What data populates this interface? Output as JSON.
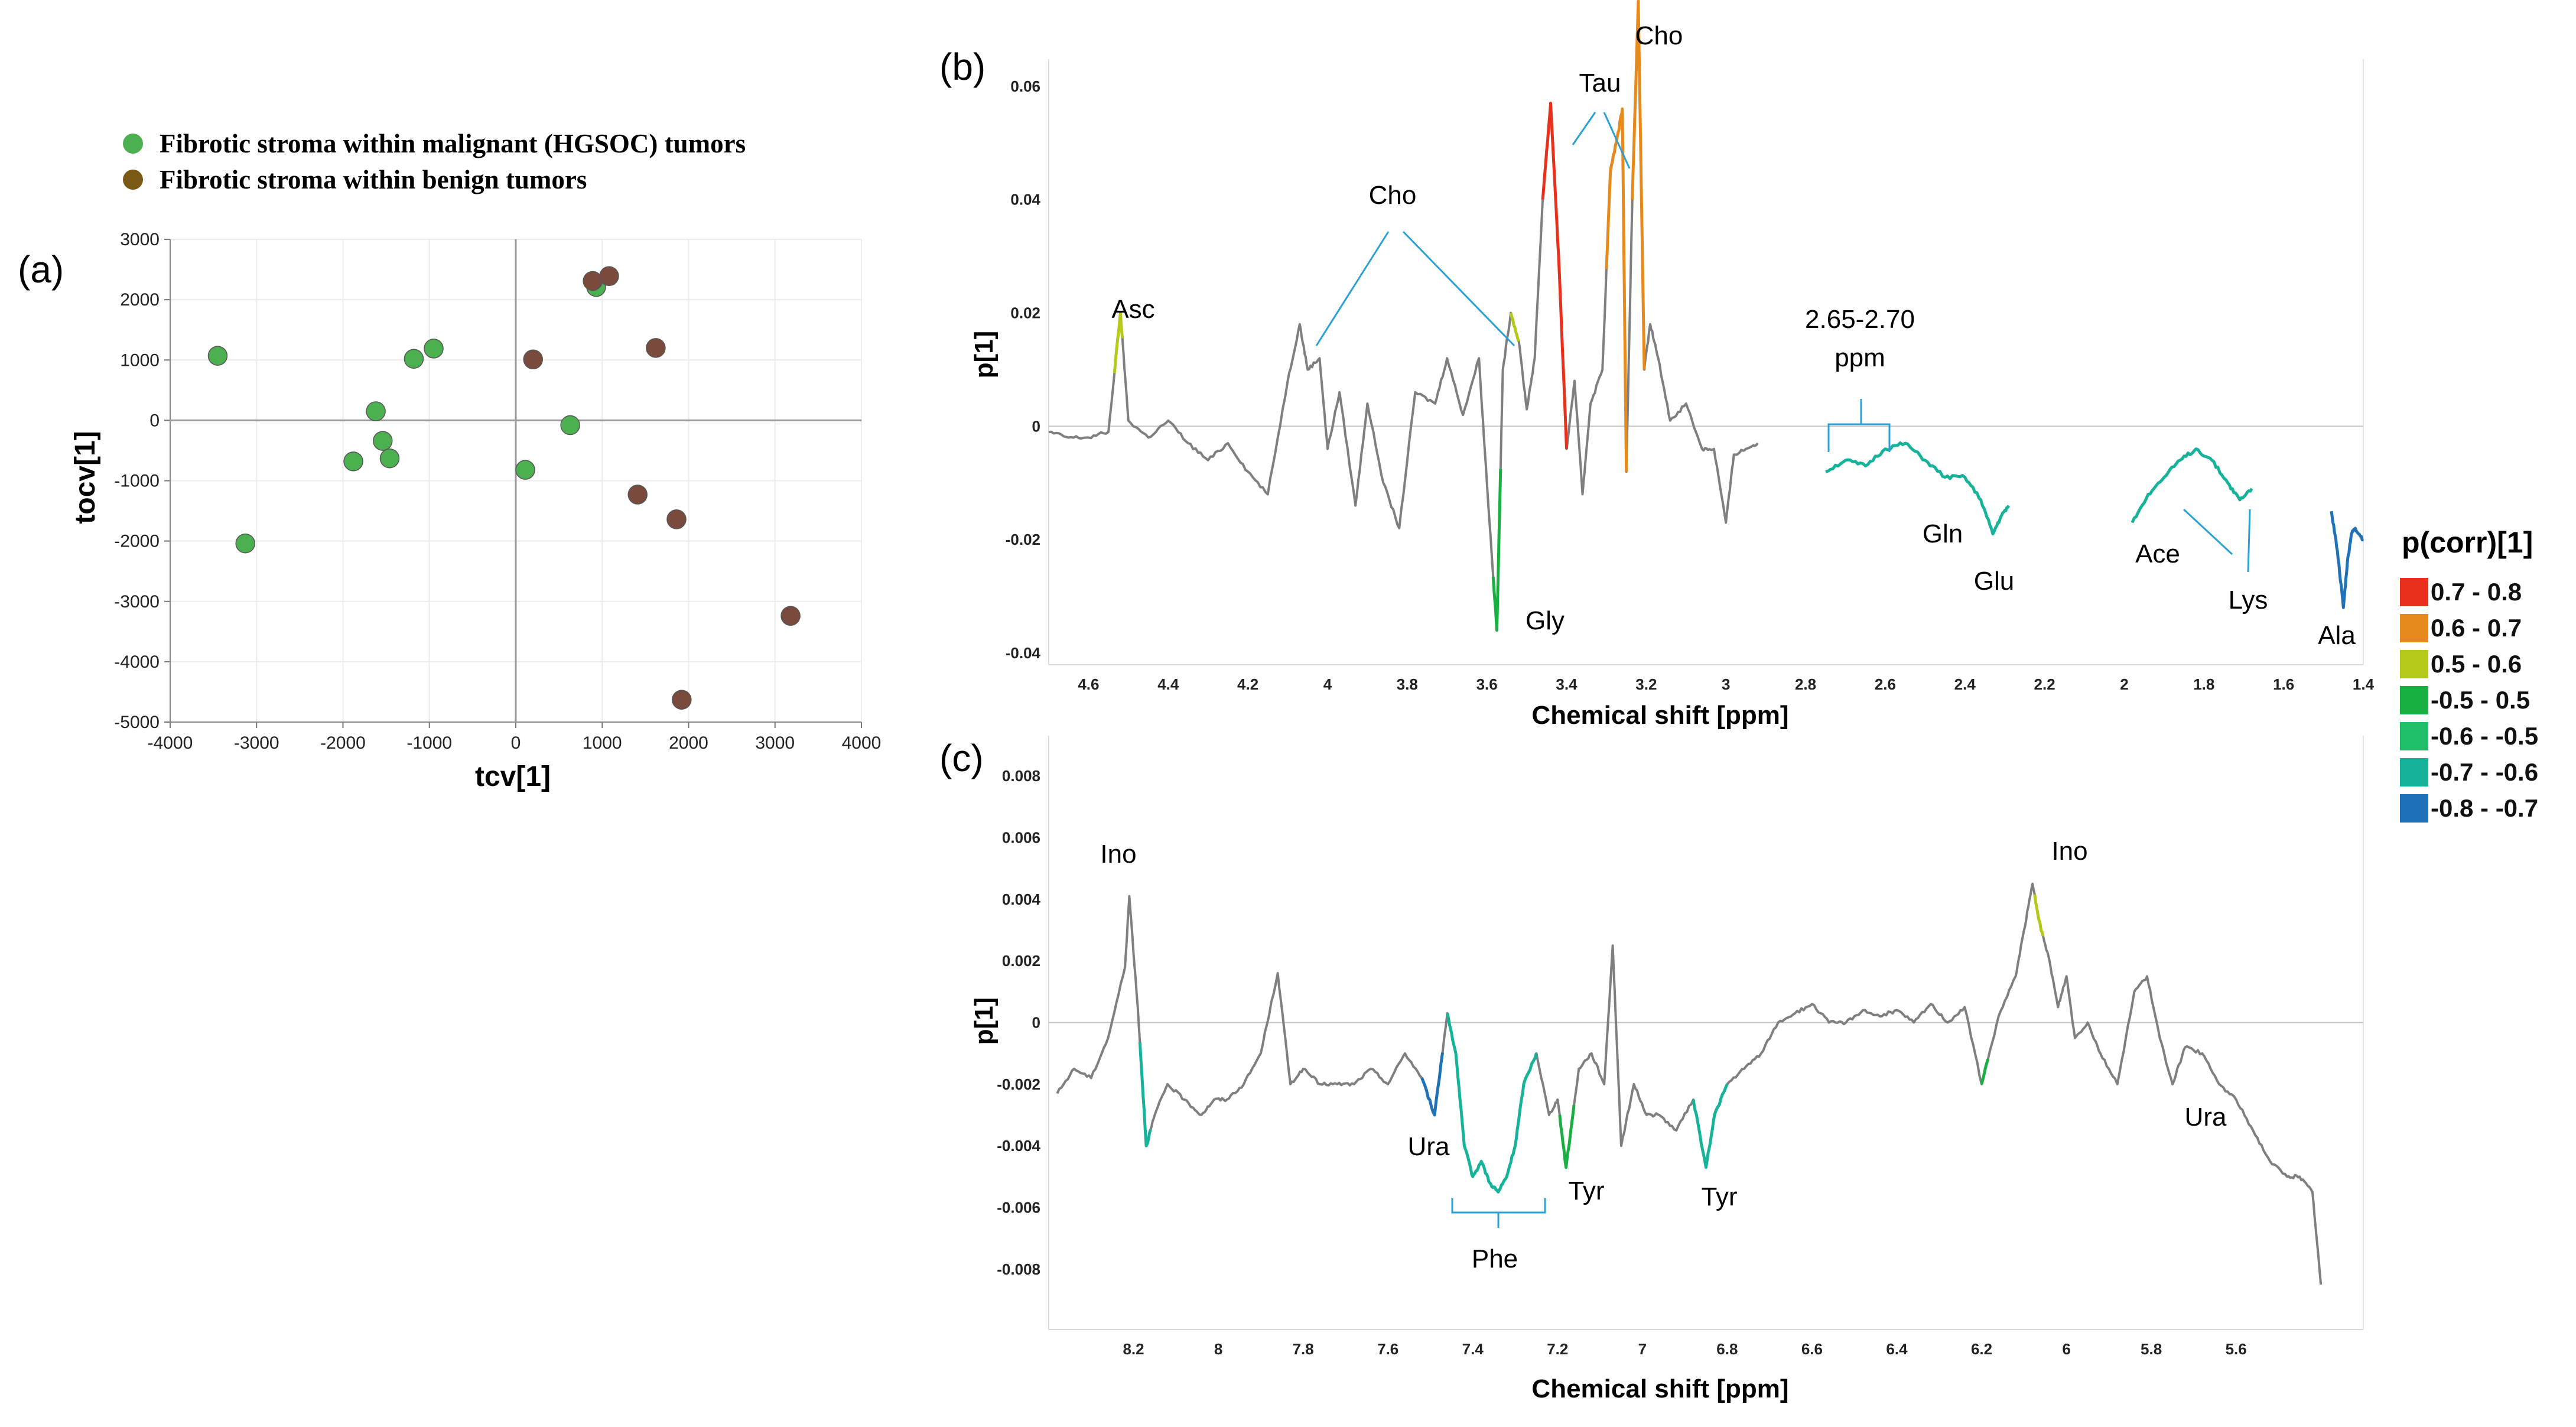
{
  "chart_data": [
    {
      "panel": "(a)",
      "type": "scatter",
      "xlabel": "tcv[1]",
      "ylabel": "tocv[1]",
      "xlim": [
        -4000,
        4000
      ],
      "ylim": [
        -5000,
        3000
      ],
      "xticks": [
        -4000,
        -3000,
        -2000,
        -1000,
        0,
        1000,
        2000,
        3000,
        4000
      ],
      "yticks": [
        3000,
        2000,
        1000,
        0,
        -1000,
        -2000,
        -3000,
        -4000,
        -5000
      ],
      "grid": true,
      "legend_position": "top",
      "series": [
        {
          "name": "Fibrotic stroma within malignant (HGSOC) tumors",
          "color": "#4caf50",
          "points": [
            [
              -3450,
              1070
            ],
            [
              -3130,
              -2040
            ],
            [
              -1880,
              -680
            ],
            [
              -1620,
              150
            ],
            [
              -1540,
              -340
            ],
            [
              -1460,
              -630
            ],
            [
              -1180,
              1020
            ],
            [
              -950,
              1190
            ],
            [
              110,
              -820
            ],
            [
              630,
              -80
            ],
            [
              930,
              2210
            ]
          ]
        },
        {
          "name": "Fibrotic stroma within benign tumors",
          "color": "#7a4a3c",
          "points": [
            [
              200,
              1010
            ],
            [
              890,
              2310
            ],
            [
              1080,
              2390
            ],
            [
              1410,
              -1230
            ],
            [
              1620,
              1200
            ],
            [
              1860,
              -1640
            ],
            [
              1920,
              -4630
            ],
            [
              3180,
              -3240
            ]
          ]
        }
      ]
    },
    {
      "panel": "(b)",
      "type": "line",
      "xlabel": "Chemical shift [ppm]",
      "ylabel": "p[1]",
      "xlim": [
        4.7,
        1.4
      ],
      "ylim": [
        -0.04,
        0.07
      ],
      "xticks": [
        "4.6",
        "4.4",
        "4.2",
        "4",
        "3.8",
        "3.6",
        "3.4",
        "3.2",
        "3",
        "2.8",
        "2.6",
        "2.4",
        "2.2",
        "2",
        "1.8",
        "1.6",
        "1.4"
      ],
      "yticks": [
        "0.06",
        "0.04",
        "0.02",
        "0",
        "-0.02",
        "-0.04"
      ],
      "segments": [
        {
          "x": [
            4.7,
            4.65,
            4.6,
            4.55,
            4.52,
            4.5,
            4.45,
            4.4,
            4.35,
            4.3,
            4.25,
            4.2,
            4.15,
            4.1,
            4.07,
            4.05,
            4.02,
            4.0,
            3.97,
            3.93,
            3.9,
            3.86,
            3.82,
            3.78,
            3.73,
            3.7,
            3.66,
            3.62,
            3.6,
            3.575,
            3.56,
            3.54,
            3.52,
            3.5,
            3.48,
            3.46,
            3.44,
            3.42,
            3.4,
            3.38,
            3.36,
            3.34,
            3.31,
            3.29,
            3.27,
            3.26,
            3.25,
            3.235,
            3.22,
            3.205,
            3.19,
            3.17,
            3.14,
            3.1,
            3.06,
            3.03,
            3.0,
            2.98,
            2.95,
            2.92
          ],
          "y": [
            -0.001,
            -0.002,
            -0.002,
            -0.001,
            0.02,
            0.001,
            -0.002,
            0.001,
            -0.003,
            -0.006,
            -0.003,
            -0.008,
            -0.012,
            0.008,
            0.018,
            0.01,
            0.012,
            -0.004,
            0.006,
            -0.014,
            0.004,
            -0.01,
            -0.018,
            0.006,
            0.004,
            0.012,
            0.002,
            0.012,
            -0.01,
            -0.036,
            0.01,
            0.02,
            0.015,
            0.003,
            0.012,
            0.04,
            0.057,
            0.03,
            -0.004,
            0.008,
            -0.012,
            0.004,
            0.01,
            0.045,
            0.052,
            0.056,
            -0.008,
            0.04,
            0.075,
            0.01,
            0.018,
            0.012,
            0.001,
            0.004,
            -0.004,
            -0.004,
            -0.017,
            -0.005,
            -0.004,
            -0.003
          ]
        },
        {
          "x": [
            2.75,
            2.7,
            2.65,
            2.6,
            2.55,
            2.5,
            2.45,
            2.4,
            2.36,
            2.33,
            2.31,
            2.29
          ],
          "y": [
            -0.008,
            -0.006,
            -0.007,
            -0.004,
            -0.003,
            -0.006,
            -0.009,
            -0.009,
            -0.013,
            -0.019,
            -0.016,
            -0.014
          ]
        },
        {
          "x": [
            1.98,
            1.94,
            1.9,
            1.86,
            1.82,
            1.78,
            1.74,
            1.71,
            1.68
          ],
          "y": [
            -0.017,
            -0.012,
            -0.009,
            -0.006,
            -0.004,
            -0.006,
            -0.01,
            -0.013,
            -0.011
          ]
        },
        {
          "x": [
            1.48,
            1.465,
            1.45,
            1.44,
            1.43,
            1.42,
            1.4
          ],
          "y": [
            -0.015,
            -0.022,
            -0.032,
            -0.024,
            -0.019,
            -0.018,
            -0.02
          ]
        }
      ],
      "colored_regions": [
        {
          "x": [
            4.535,
            4.515
          ],
          "color": "#b5c91a"
        },
        {
          "x": [
            3.46,
            3.4
          ],
          "color": "#e8301c"
        },
        {
          "x": [
            3.3,
            3.25
          ],
          "color": "#e68a1e"
        },
        {
          "x": [
            3.235,
            3.205
          ],
          "color": "#e68a1e"
        },
        {
          "x": [
            3.585,
            3.565
          ],
          "color": "#18b040"
        },
        {
          "x": [
            3.54,
            3.52
          ],
          "color": "#b5c91a"
        },
        {
          "x": [
            2.75,
            2.29
          ],
          "color": "#16b39a"
        },
        {
          "x": [
            1.98,
            1.68
          ],
          "color": "#16b39a"
        },
        {
          "x": [
            1.48,
            1.4
          ],
          "color": "#1f71b8"
        }
      ],
      "annotations": [
        "Asc",
        "Cho",
        "Tau",
        "Cho",
        "Gly",
        "Gln",
        "Glu",
        "Ace",
        "Lys",
        "Ala"
      ],
      "bracket_label": "2.65-2.70",
      "bracket_unit": "ppm"
    },
    {
      "panel": "(c)",
      "type": "line",
      "xlabel": "Chemical shift [ppm]",
      "ylabel": "p[1]",
      "xlim": [
        8.4,
        5.3
      ],
      "ylim": [
        -0.009,
        0.009
      ],
      "xticks": [
        "8.2",
        "8",
        "7.8",
        "7.6",
        "7.4",
        "7.2",
        "7",
        "6.8",
        "6.6",
        "6.4",
        "6.2",
        "6",
        "5.8",
        "5.6"
      ],
      "yticks": [
        "0.008",
        "0.006",
        "0.004",
        "0.002",
        "0",
        "-0.002",
        "-0.004",
        "-0.006",
        "-0.008"
      ],
      "segments": [
        {
          "x": [
            8.38,
            8.34,
            8.3,
            8.26,
            8.22,
            8.21,
            8.19,
            8.17,
            8.15,
            8.12,
            8.08,
            8.04,
            8.01,
            7.98,
            7.94,
            7.9,
            7.86,
            7.83,
            7.8,
            7.76,
            7.72,
            7.68,
            7.64,
            7.6,
            7.56,
            7.52,
            7.49,
            7.46,
            7.44,
            7.42,
            7.4,
            7.38,
            7.36,
            7.34,
            7.32,
            7.3,
            7.28,
            7.25,
            7.22,
            7.2,
            7.18,
            7.15,
            7.12,
            7.09,
            7.07,
            7.05,
            7.02,
            6.99,
            6.96,
            6.92,
            6.88,
            6.85,
            6.83,
            6.8,
            6.76,
            6.72,
            6.68,
            6.64,
            6.6,
            6.56,
            6.52,
            6.48,
            6.44,
            6.4,
            6.36,
            6.32,
            6.28,
            6.24,
            6.2,
            6.16,
            6.12,
            6.1,
            6.08,
            6.06,
            6.04,
            6.02,
            6.0,
            5.98,
            5.95,
            5.92,
            5.88,
            5.84,
            5.81,
            5.78,
            5.75,
            5.72,
            5.68,
            5.64,
            5.6,
            5.56,
            5.52,
            5.48,
            5.45,
            5.42,
            5.4
          ],
          "y": [
            -0.0023,
            -0.0015,
            -0.0018,
            -0.0005,
            0.0018,
            0.0041,
            0.0005,
            -0.004,
            -0.003,
            -0.002,
            -0.0025,
            -0.003,
            -0.0025,
            -0.0025,
            -0.002,
            -0.001,
            0.0016,
            -0.002,
            -0.0015,
            -0.002,
            -0.002,
            -0.002,
            -0.0015,
            -0.002,
            -0.001,
            -0.0018,
            -0.003,
            0.0003,
            -0.001,
            -0.004,
            -0.005,
            -0.0045,
            -0.0052,
            -0.0055,
            -0.005,
            -0.004,
            -0.002,
            -0.001,
            -0.003,
            -0.0025,
            -0.0047,
            -0.0015,
            -0.001,
            -0.002,
            0.0025,
            -0.004,
            -0.002,
            -0.003,
            -0.003,
            -0.0035,
            -0.0025,
            -0.0047,
            -0.003,
            -0.002,
            -0.0015,
            -0.001,
            0.0,
            0.0003,
            0.0006,
            0.0,
            0.0,
            0.0004,
            0.0002,
            0.0004,
            0.0,
            0.0006,
            0.0,
            0.0005,
            -0.002,
            0.0002,
            0.0015,
            0.003,
            0.0045,
            0.003,
            0.002,
            0.0005,
            0.0015,
            -0.0005,
            0.0,
            -0.001,
            -0.002,
            0.001,
            0.0015,
            -0.0005,
            -0.002,
            -0.0008,
            -0.001,
            -0.002,
            -0.0025,
            -0.0035,
            -0.0045,
            -0.005,
            -0.005,
            -0.0055,
            -0.0085
          ]
        }
      ],
      "colored_regions": [
        {
          "x": [
            8.185,
            8.16
          ],
          "color": "#16b39a"
        },
        {
          "x": [
            7.52,
            7.47
          ],
          "color": "#1f71b8"
        },
        {
          "x": [
            7.46,
            7.25
          ],
          "color": "#16b39a"
        },
        {
          "x": [
            7.195,
            7.16
          ],
          "color": "#18b040"
        },
        {
          "x": [
            6.88,
            6.8
          ],
          "color": "#16b39a"
        },
        {
          "x": [
            6.075,
            6.055
          ],
          "color": "#b5c91a"
        },
        {
          "x": [
            6.2,
            6.185
          ],
          "color": "#18b040"
        }
      ],
      "annotations": [
        "Ino",
        "Ura",
        "Phe",
        "Tyr",
        "Tyr",
        "Ino",
        "Ura"
      ]
    }
  ],
  "labels": {
    "a": "(a)",
    "b": "(b)",
    "c": "(c)"
  },
  "legend_b": {
    "title": "p(corr)[1]",
    "items": [
      {
        "label": "0.7 - 0.8",
        "color": "#e8301c"
      },
      {
        "label": "0.6 - 0.7",
        "color": "#e68a1e"
      },
      {
        "label": "0.5 - 0.6",
        "color": "#b5c91a"
      },
      {
        "label": "-0.5 - 0.5",
        "color": "#18b040"
      },
      {
        "label": "-0.6 - -0.5",
        "color": "#1fbf6a"
      },
      {
        "label": "-0.7 - -0.6",
        "color": "#16b39a"
      },
      {
        "label": "-0.8 - -0.7",
        "color": "#1f71b8"
      }
    ]
  }
}
